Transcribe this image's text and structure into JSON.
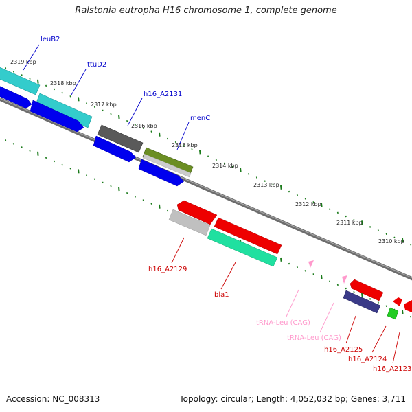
{
  "title": "Ralstonia eutropha H16 chromosome 1, complete genome",
  "footer": {
    "accession": "Accession: NC_008313",
    "summary": "Topology: circular; Length: 4,052,032 bp; Genes: 3,711"
  },
  "colors": {
    "blue": "#0000ee",
    "cyan": "#33cccc",
    "darkgray": "#555555",
    "olive": "#6b8e23",
    "red": "#ee0000",
    "lightgray": "#c0c0c0",
    "teal": "#20e0a0",
    "purple": "#3a3a88",
    "green": "#22cc22",
    "pink": "#ff99cc",
    "backbone": "#777777",
    "tick": "#1a7a1a"
  },
  "kbp_ticks": [
    "2319 kbp",
    "2318 kbp",
    "2317 kbp",
    "2316 kbp",
    "2315 kbp",
    "2314 kbp",
    "2313 kbp",
    "2312 kbp",
    "2311 kbp",
    "2310 kbp"
  ],
  "gene_labels": [
    {
      "text": "leuB2",
      "color": "#0000cc"
    },
    {
      "text": "ttuD2",
      "color": "#0000cc"
    },
    {
      "text": "h16_A2131",
      "color": "#0000cc"
    },
    {
      "text": "menC",
      "color": "#0000cc"
    },
    {
      "text": "h16_A2129",
      "color": "#cc0000"
    },
    {
      "text": "bla1",
      "color": "#cc0000"
    },
    {
      "text": "tRNA-Leu (CAG)",
      "color": "#ff99cc"
    },
    {
      "text": "tRNA-Leu (CAG)",
      "color": "#ff99cc"
    },
    {
      "text": "h16_A2125",
      "color": "#cc0000"
    },
    {
      "text": "h16_A2124",
      "color": "#cc0000"
    },
    {
      "text": "h16_A2123",
      "color": "#cc0000"
    }
  ],
  "features": [
    {
      "track": "forward",
      "color": "cyan",
      "name": "leuB2"
    },
    {
      "track": "forward",
      "color": "cyan",
      "name": "ttuD2"
    },
    {
      "track": "forward",
      "color": "darkgray",
      "name": "h16_A2131"
    },
    {
      "track": "forward",
      "color": "olive",
      "name": "menC"
    },
    {
      "track": "forward",
      "color": "lightgray",
      "name": ""
    },
    {
      "track": "cds-forward",
      "color": "blue",
      "name": ""
    },
    {
      "track": "cds-forward",
      "color": "blue",
      "name": ""
    },
    {
      "track": "cds-forward",
      "color": "blue",
      "name": ""
    },
    {
      "track": "cds-forward",
      "color": "blue",
      "name": ""
    },
    {
      "track": "cds-reverse",
      "color": "red",
      "name": "h16_A2129"
    },
    {
      "track": "cds-reverse",
      "color": "red",
      "name": ""
    },
    {
      "track": "reverse",
      "color": "lightgray",
      "name": ""
    },
    {
      "track": "reverse",
      "color": "teal",
      "name": "bla1"
    },
    {
      "track": "reverse",
      "color": "pink",
      "name": "tRNA-Leu (CAG)"
    },
    {
      "track": "reverse",
      "color": "pink",
      "name": "tRNA-Leu (CAG)"
    },
    {
      "track": "cds-reverse",
      "color": "red",
      "name": "h16_A2125"
    },
    {
      "track": "reverse",
      "color": "purple",
      "name": "h16_A2124"
    },
    {
      "track": "reverse",
      "color": "green",
      "name": ""
    },
    {
      "track": "cds-reverse",
      "color": "red",
      "name": "h16_A2123"
    },
    {
      "track": "cds-reverse",
      "color": "red",
      "name": ""
    }
  ]
}
